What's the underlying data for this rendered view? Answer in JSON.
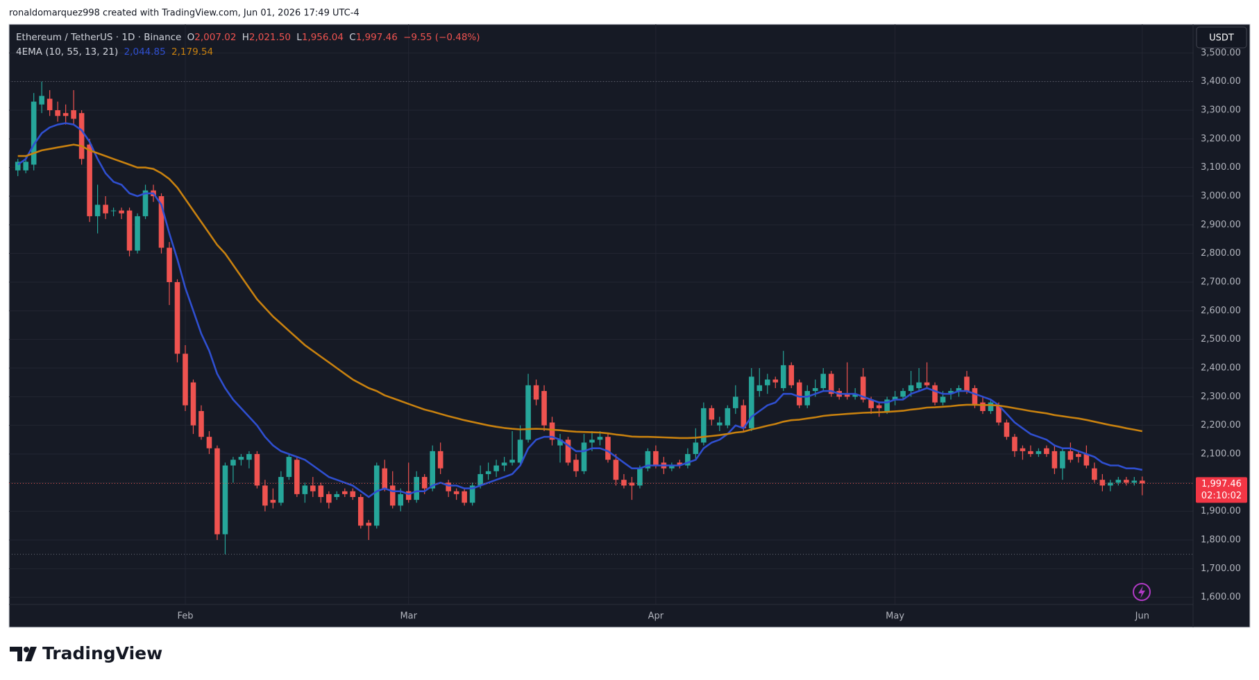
{
  "header": {
    "credit": "ronaldomarquez998 created with TradingView.com, Jun 01, 2026 17:49 UTC-4"
  },
  "footer": {
    "brand": "TradingView"
  },
  "chart_data": {
    "type": "candlestick",
    "legend": {
      "symbol": "Ethereum / TetherUS · 1D · Binance",
      "o": "O",
      "open": "2,007.02",
      "h": "H",
      "high": "2,021.50",
      "l": "L",
      "low": "1,956.04",
      "c": "C",
      "close": "1,997.46",
      "change": "−9.55 (−0.48%)",
      "indicator": "4EMA (10, 55, 13, 21)",
      "indicator_values": [
        "2,044.85",
        "2,179.54"
      ]
    },
    "currency_button": "USDT",
    "last_price_label": "1,997.46",
    "countdown": "02:10:02",
    "up_color": "#26a69a",
    "down_color": "#ef5350",
    "grid": true,
    "categories": [
      null,
      null,
      null,
      null,
      null,
      null,
      null,
      null,
      null,
      null,
      null,
      null,
      null,
      null,
      null,
      null,
      null,
      null,
      null,
      null,
      null,
      "Feb",
      null,
      null,
      null,
      null,
      null,
      null,
      null,
      null,
      null,
      null,
      null,
      null,
      null,
      null,
      null,
      null,
      null,
      null,
      null,
      null,
      null,
      null,
      null,
      null,
      null,
      null,
      null,
      "Mar",
      null,
      null,
      null,
      null,
      null,
      null,
      null,
      null,
      null,
      null,
      null,
      null,
      null,
      null,
      null,
      null,
      null,
      null,
      null,
      null,
      null,
      null,
      null,
      null,
      null,
      null,
      null,
      null,
      null,
      null,
      "Apr",
      null,
      null,
      null,
      null,
      null,
      null,
      null,
      null,
      null,
      null,
      null,
      null,
      null,
      null,
      null,
      null,
      null,
      null,
      null,
      null,
      null,
      null,
      null,
      null,
      null,
      null,
      null,
      null,
      null,
      "May",
      null,
      null,
      null,
      null,
      null,
      null,
      null,
      null,
      null,
      null,
      null,
      null,
      null,
      null,
      null,
      null,
      null,
      null,
      null,
      null,
      null,
      null,
      null,
      null,
      null,
      null,
      null,
      null,
      null,
      null,
      "Jun"
    ],
    "open": [
      3090,
      3090,
      3110,
      3320,
      3340,
      3300,
      3290,
      3300,
      3290,
      3180,
      2930,
      2970,
      2950,
      2950,
      2950,
      2810,
      2930,
      3020,
      3000,
      2820,
      2700,
      2450,
      2350,
      2250,
      2160,
      2120,
      1820,
      2060,
      2080,
      2080,
      2100,
      1990,
      1940,
      1930,
      2020,
      2080,
      1960,
      1990,
      1990,
      1960,
      1950,
      1970,
      1970,
      1950,
      1860,
      1850,
      2050,
      1990,
      1920,
      1970,
      1940,
      2020,
      1980,
      2110,
      2000,
      1970,
      1970,
      1930,
      1990,
      2030,
      2040,
      2060,
      2070,
      2070,
      2150,
      2340,
      2320,
      2210,
      2130,
      2150,
      2080,
      2040,
      2140,
      2150,
      2160,
      2080,
      2010,
      2000,
      1990,
      2050,
      2110,
      2070,
      2050,
      2070,
      2060,
      2100,
      2140,
      2260,
      2200,
      2200,
      2260,
      2270,
      2190,
      2320,
      2340,
      2360,
      2330,
      2410,
      2350,
      2270,
      2320,
      2330,
      2380,
      2320,
      2310,
      2300,
      2370,
      2290,
      2270,
      2250,
      2290,
      2300,
      2320,
      2330,
      2350,
      2340,
      2280,
      2310,
      2320,
      2370,
      2330,
      2280,
      2250,
      2270,
      2210,
      2160,
      2120,
      2110,
      2100,
      2120,
      2110,
      2050,
      2110,
      2100,
      2100,
      2050,
      2010,
      1990,
      2000,
      2010,
      2000,
      2007.02
    ],
    "high": [
      3130,
      3140,
      3360,
      3400,
      3370,
      3330,
      3320,
      3370,
      3300,
      3200,
      3040,
      3000,
      2960,
      2960,
      2960,
      2940,
      3040,
      3040,
      3010,
      2840,
      2710,
      2480,
      2360,
      2270,
      2180,
      2130,
      2070,
      2090,
      2100,
      2110,
      2110,
      2010,
      1980,
      2040,
      2100,
      2090,
      2000,
      2020,
      2000,
      1970,
      1970,
      1980,
      1980,
      1960,
      1870,
      2070,
      2080,
      2040,
      1980,
      2070,
      2040,
      2030,
      2130,
      2140,
      2010,
      1980,
      1980,
      2000,
      2060,
      2070,
      2080,
      2090,
      2180,
      2200,
      2380,
      2360,
      2340,
      2230,
      2170,
      2160,
      2100,
      2170,
      2180,
      2180,
      2170,
      2100,
      2030,
      2020,
      2060,
      2120,
      2130,
      2090,
      2070,
      2080,
      2120,
      2190,
      2280,
      2270,
      2230,
      2270,
      2340,
      2290,
      2400,
      2400,
      2380,
      2370,
      2460,
      2420,
      2360,
      2340,
      2360,
      2400,
      2390,
      2330,
      2420,
      2330,
      2400,
      2300,
      2280,
      2300,
      2320,
      2330,
      2390,
      2400,
      2420,
      2350,
      2320,
      2330,
      2340,
      2390,
      2340,
      2300,
      2290,
      2280,
      2220,
      2170,
      2130,
      2130,
      2120,
      2130,
      2130,
      2120,
      2140,
      2110,
      2130,
      2070,
      2030,
      2010,
      2020,
      2020,
      2020,
      2021.5
    ],
    "low": [
      3070,
      3080,
      3090,
      3290,
      3280,
      3260,
      3250,
      3250,
      3110,
      2910,
      2870,
      2920,
      2930,
      2920,
      2790,
      2800,
      2920,
      2980,
      2800,
      2620,
      2420,
      2250,
      2170,
      2150,
      2100,
      1800,
      1750,
      2000,
      2060,
      2050,
      1980,
      1900,
      1910,
      1920,
      2010,
      1950,
      1930,
      1950,
      1930,
      1910,
      1940,
      1950,
      1940,
      1840,
      1800,
      1840,
      1970,
      1910,
      1900,
      1930,
      1930,
      1960,
      1970,
      2030,
      1950,
      1940,
      1920,
      1920,
      1980,
      2010,
      2020,
      2040,
      2060,
      2060,
      2140,
      2270,
      2180,
      2130,
      2070,
      2060,
      2020,
      2030,
      2110,
      2130,
      2070,
      1990,
      1980,
      1940,
      1980,
      2040,
      2050,
      2030,
      2040,
      2050,
      2050,
      2080,
      2130,
      2200,
      2180,
      2190,
      2240,
      2180,
      2180,
      2300,
      2310,
      2330,
      2320,
      2330,
      2260,
      2260,
      2300,
      2320,
      2300,
      2290,
      2290,
      2290,
      2280,
      2240,
      2230,
      2240,
      2270,
      2290,
      2300,
      2320,
      2330,
      2270,
      2270,
      2290,
      2300,
      2310,
      2260,
      2240,
      2240,
      2200,
      2150,
      2090,
      2080,
      2090,
      2090,
      2090,
      2030,
      2010,
      2070,
      2070,
      2050,
      2000,
      1970,
      1970,
      1990,
      1990,
      1990,
      1956.04
    ],
    "close": [
      3120,
      3120,
      3330,
      3350,
      3300,
      3280,
      3280,
      3270,
      3130,
      2930,
      2970,
      2940,
      2950,
      2940,
      2810,
      2930,
      3020,
      3000,
      2820,
      2700,
      2450,
      2270,
      2200,
      2160,
      2120,
      1820,
      2060,
      2080,
      2090,
      2100,
      1990,
      1920,
      1930,
      2020,
      2090,
      1960,
      1990,
      1970,
      1950,
      1930,
      1960,
      1960,
      1950,
      1850,
      1850,
      2060,
      1980,
      1920,
      1960,
      1940,
      2020,
      1980,
      2110,
      2050,
      1970,
      1960,
      1930,
      1990,
      2030,
      2040,
      2060,
      2070,
      2080,
      2150,
      2340,
      2290,
      2200,
      2150,
      2150,
      2070,
      2040,
      2140,
      2150,
      2160,
      2080,
      2010,
      1990,
      1990,
      2050,
      2110,
      2060,
      2050,
      2060,
      2060,
      2100,
      2140,
      2260,
      2220,
      2210,
      2260,
      2300,
      2190,
      2370,
      2340,
      2360,
      2350,
      2410,
      2340,
      2270,
      2320,
      2330,
      2380,
      2310,
      2300,
      2300,
      2310,
      2290,
      2260,
      2260,
      2290,
      2300,
      2320,
      2340,
      2350,
      2340,
      2280,
      2300,
      2320,
      2330,
      2320,
      2270,
      2250,
      2280,
      2210,
      2160,
      2110,
      2110,
      2100,
      2110,
      2100,
      2050,
      2110,
      2080,
      2090,
      2060,
      2010,
      1990,
      2000,
      2010,
      2000,
      2007.01,
      1997.46
    ],
    "overlays": [
      {
        "color": "#2f4fd0",
        "values": [
          3110,
          3130,
          3180,
          3220,
          3240,
          3250,
          3255,
          3250,
          3230,
          3190,
          3130,
          3080,
          3050,
          3040,
          3010,
          3000,
          3010,
          3010,
          2970,
          2870,
          2780,
          2680,
          2600,
          2520,
          2460,
          2380,
          2330,
          2290,
          2260,
          2230,
          2200,
          2160,
          2130,
          2110,
          2100,
          2090,
          2080,
          2060,
          2040,
          2020,
          2010,
          2000,
          1990,
          1970,
          1950,
          1970,
          1980,
          1970,
          1970,
          1960,
          1970,
          1970,
          1990,
          2000,
          1990,
          1990,
          1980,
          1980,
          1990,
          2000,
          2010,
          2020,
          2030,
          2060,
          2120,
          2150,
          2160,
          2160,
          2150,
          2130,
          2110,
          2110,
          2120,
          2120,
          2110,
          2090,
          2070,
          2050,
          2050,
          2060,
          2060,
          2060,
          2060,
          2060,
          2070,
          2080,
          2120,
          2140,
          2150,
          2170,
          2200,
          2190,
          2230,
          2250,
          2270,
          2280,
          2310,
          2310,
          2300,
          2300,
          2310,
          2320,
          2320,
          2310,
          2310,
          2310,
          2300,
          2290,
          2280,
          2280,
          2290,
          2290,
          2310,
          2320,
          2330,
          2320,
          2310,
          2310,
          2320,
          2320,
          2310,
          2300,
          2290,
          2270,
          2240,
          2210,
          2190,
          2170,
          2160,
          2150,
          2130,
          2120,
          2120,
          2110,
          2100,
          2090,
          2070,
          2060,
          2060,
          2050,
          2050,
          2044.85
        ]
      },
      {
        "color": "#c8810f",
        "values": [
          3140,
          3140,
          3150,
          3160,
          3165,
          3170,
          3175,
          3180,
          3175,
          3160,
          3150,
          3140,
          3130,
          3120,
          3110,
          3100,
          3100,
          3095,
          3080,
          3060,
          3030,
          2990,
          2950,
          2910,
          2870,
          2830,
          2800,
          2760,
          2720,
          2680,
          2640,
          2610,
          2580,
          2555,
          2530,
          2505,
          2480,
          2460,
          2440,
          2420,
          2400,
          2380,
          2360,
          2345,
          2330,
          2320,
          2305,
          2295,
          2285,
          2275,
          2265,
          2255,
          2248,
          2240,
          2232,
          2225,
          2218,
          2212,
          2206,
          2200,
          2195,
          2191,
          2188,
          2186,
          2187,
          2188,
          2187,
          2185,
          2183,
          2180,
          2178,
          2177,
          2176,
          2175,
          2172,
          2168,
          2165,
          2161,
          2160,
          2160,
          2159,
          2158,
          2157,
          2156,
          2156,
          2157,
          2160,
          2163,
          2166,
          2170,
          2175,
          2178,
          2186,
          2192,
          2199,
          2205,
          2213,
          2218,
          2220,
          2224,
          2228,
          2233,
          2236,
          2238,
          2240,
          2242,
          2244,
          2245,
          2246,
          2247,
          2249,
          2251,
          2255,
          2258,
          2262,
          2263,
          2265,
          2267,
          2270,
          2272,
          2272,
          2271,
          2271,
          2269,
          2265,
          2260,
          2255,
          2250,
          2246,
          2242,
          2236,
          2232,
          2228,
          2224,
          2219,
          2213,
          2207,
          2201,
          2196,
          2190,
          2185,
          2179.54
        ]
      }
    ],
    "ylim": [
      1575,
      3600
    ],
    "yticks": [
      {
        "value": 1600,
        "label": "1,600.00"
      },
      {
        "value": 1700,
        "label": "1,700.00"
      },
      {
        "value": 1800,
        "label": "1,800.00"
      },
      {
        "value": 1900,
        "label": "1,900.00"
      },
      {
        "value": 2000,
        "label": "2,000.00"
      },
      {
        "value": 2100,
        "label": "2,100.00"
      },
      {
        "value": 2200,
        "label": "2,200.00"
      },
      {
        "value": 2300,
        "label": "2,300.00"
      },
      {
        "value": 2400,
        "label": "2,400.00"
      },
      {
        "value": 2500,
        "label": "2,500.00"
      },
      {
        "value": 2600,
        "label": "2,600.00"
      },
      {
        "value": 2700,
        "label": "2,700.00"
      },
      {
        "value": 2800,
        "label": "2,800.00"
      },
      {
        "value": 2900,
        "label": "2,900.00"
      },
      {
        "value": 3000,
        "label": "3,000.00"
      },
      {
        "value": 3100,
        "label": "3,100.00"
      },
      {
        "value": 3200,
        "label": "3,200.00"
      },
      {
        "value": 3300,
        "label": "3,300.00"
      },
      {
        "value": 3400,
        "label": "3,400.00"
      },
      {
        "value": 3500,
        "label": "3,500.00"
      }
    ]
  }
}
